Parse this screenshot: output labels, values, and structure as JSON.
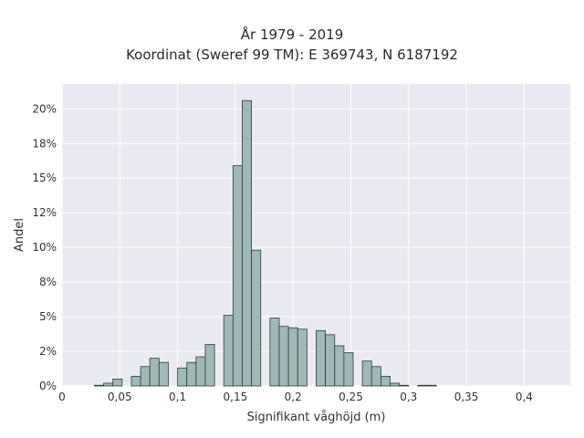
{
  "chart_data": {
    "type": "bar",
    "title": "År 1979 - 2019",
    "subtitle": "Koordinat (Sweref 99 TM): E 369743, N 6187192",
    "xlabel": "Signifikant våghöjd (m)",
    "ylabel": "Andel",
    "xlim": [
      0,
      0.44
    ],
    "ylim": [
      0,
      0.218
    ],
    "grid": true,
    "x_ticks": [
      {
        "value": 0,
        "label": "0"
      },
      {
        "value": 0.05,
        "label": "0,05"
      },
      {
        "value": 0.1,
        "label": "0,1"
      },
      {
        "value": 0.15,
        "label": "0,15"
      },
      {
        "value": 0.2,
        "label": "0,2"
      },
      {
        "value": 0.25,
        "label": "0,25"
      },
      {
        "value": 0.3,
        "label": "0,3"
      },
      {
        "value": 0.35,
        "label": "0,35"
      },
      {
        "value": 0.4,
        "label": "0,4"
      }
    ],
    "y_ticks": [
      {
        "value": 0,
        "label": "0%"
      },
      {
        "value": 0.025,
        "label": "2%"
      },
      {
        "value": 0.05,
        "label": "5%"
      },
      {
        "value": 0.075,
        "label": "8%"
      },
      {
        "value": 0.1,
        "label": "10%"
      },
      {
        "value": 0.125,
        "label": "12%"
      },
      {
        "value": 0.15,
        "label": "15%"
      },
      {
        "value": 0.175,
        "label": "18%"
      },
      {
        "value": 0.2,
        "label": "20%"
      }
    ],
    "bin_width": 0.008,
    "bins": [
      {
        "x": 0.028,
        "y": 0.0005
      },
      {
        "x": 0.036,
        "y": 0.002
      },
      {
        "x": 0.044,
        "y": 0.005
      },
      {
        "x": 0.06,
        "y": 0.007
      },
      {
        "x": 0.068,
        "y": 0.014
      },
      {
        "x": 0.076,
        "y": 0.02
      },
      {
        "x": 0.084,
        "y": 0.017
      },
      {
        "x": 0.1,
        "y": 0.013
      },
      {
        "x": 0.108,
        "y": 0.017
      },
      {
        "x": 0.116,
        "y": 0.021
      },
      {
        "x": 0.124,
        "y": 0.03
      },
      {
        "x": 0.14,
        "y": 0.051
      },
      {
        "x": 0.148,
        "y": 0.159
      },
      {
        "x": 0.156,
        "y": 0.206
      },
      {
        "x": 0.164,
        "y": 0.098
      },
      {
        "x": 0.18,
        "y": 0.049
      },
      {
        "x": 0.188,
        "y": 0.043
      },
      {
        "x": 0.196,
        "y": 0.042
      },
      {
        "x": 0.204,
        "y": 0.041
      },
      {
        "x": 0.22,
        "y": 0.04
      },
      {
        "x": 0.228,
        "y": 0.037
      },
      {
        "x": 0.236,
        "y": 0.029
      },
      {
        "x": 0.244,
        "y": 0.024
      },
      {
        "x": 0.26,
        "y": 0.018
      },
      {
        "x": 0.268,
        "y": 0.014
      },
      {
        "x": 0.276,
        "y": 0.007
      },
      {
        "x": 0.284,
        "y": 0.002
      },
      {
        "x": 0.292,
        "y": 0.0005
      },
      {
        "x": 0.308,
        "y": 0.0005
      },
      {
        "x": 0.316,
        "y": 0.0005
      }
    ],
    "colors": {
      "bar_fill": "#a1b8b9",
      "bar_edge": "#2f3b3b",
      "plot_bg": "#eaeaf2",
      "grid": "#ffffff"
    }
  }
}
